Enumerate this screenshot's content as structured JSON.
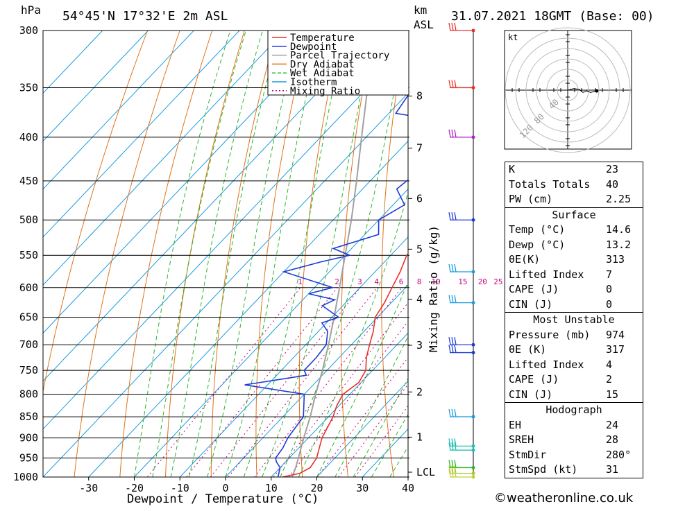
{
  "header": {
    "unit_left": "hPa",
    "location": "54°45'N  17°32'E  2m  ASL",
    "unit_km": "km",
    "unit_asl": "ASL",
    "datetime": "31.07.2021  18GMT  (Base: 00)"
  },
  "chart_data": {
    "type": "skew-t log-p",
    "xlabel": "Dewpoint / Temperature (°C)",
    "ylabel_left": "hPa",
    "ylabel_right": "Mixing Ratio (g/kg)",
    "pressure_levels": [
      300,
      350,
      400,
      450,
      500,
      550,
      600,
      650,
      700,
      750,
      800,
      850,
      900,
      950,
      1000
    ],
    "temperature_ticks": [
      -30,
      -20,
      -10,
      0,
      10,
      20,
      30,
      40
    ],
    "xlim": [
      -40,
      40
    ],
    "ylim_hpa": [
      1000,
      300
    ],
    "altitude_km": [
      {
        "label": "8",
        "p": 358
      },
      {
        "label": "7",
        "p": 412
      },
      {
        "label": "6",
        "p": 472
      },
      {
        "label": "5",
        "p": 541
      },
      {
        "label": "4",
        "p": 619
      },
      {
        "label": "3",
        "p": 701
      },
      {
        "label": "2",
        "p": 795
      },
      {
        "label": "1",
        "p": 898
      },
      {
        "label": "LCL",
        "p": 987
      }
    ],
    "mixing_ratio_labels": [
      "1",
      "2",
      "3",
      "4",
      "6",
      "8",
      "10",
      "15",
      "20",
      "25"
    ],
    "mixing_ratio_values": [
      1,
      2,
      3,
      4,
      6,
      8,
      10,
      15,
      20,
      25
    ],
    "legend": [
      {
        "name": "Temperature",
        "color": "#e8302a",
        "style": "solid"
      },
      {
        "name": "Dewpoint",
        "color": "#1c3bd6",
        "style": "solid"
      },
      {
        "name": "Parcel Trajectory",
        "color": "#a0a0a0",
        "style": "solid"
      },
      {
        "name": "Dry Adiabat",
        "color": "#e0731a",
        "style": "solid"
      },
      {
        "name": "Wet Adiabat",
        "color": "#2bb52b",
        "style": "dashed"
      },
      {
        "name": "Isotherm",
        "color": "#1a9be0",
        "style": "solid"
      },
      {
        "name": "Mixing Ratio",
        "color": "#c8007f",
        "style": "dotted"
      }
    ],
    "series": [
      {
        "name": "Temperature",
        "color": "#e8302a",
        "points": [
          [
            1000,
            12.5
          ],
          [
            990,
            15.5
          ],
          [
            975,
            16.6
          ],
          [
            950,
            16.0
          ],
          [
            925,
            14.5
          ],
          [
            900,
            13.0
          ],
          [
            875,
            12.0
          ],
          [
            850,
            11.0
          ],
          [
            825,
            9.5
          ],
          [
            800,
            8.5
          ],
          [
            775,
            9.5
          ],
          [
            750,
            8.5
          ],
          [
            725,
            6.0
          ],
          [
            700,
            4.0
          ],
          [
            675,
            2.0
          ],
          [
            650,
            -0.5
          ],
          [
            625,
            -1.5
          ],
          [
            600,
            -3.0
          ],
          [
            575,
            -4.5
          ],
          [
            550,
            -6.5
          ],
          [
            525,
            -6.0
          ],
          [
            500,
            -8.5
          ],
          [
            475,
            -11.0
          ],
          [
            450,
            -14.0
          ],
          [
            425,
            -17.0
          ],
          [
            400,
            -21.0
          ],
          [
            375,
            -23.5
          ],
          [
            350,
            -27.5
          ],
          [
            325,
            -32.0
          ],
          [
            300,
            -37.5
          ]
        ]
      },
      {
        "name": "Dewpoint",
        "color": "#1c3bd6",
        "points": [
          [
            1000,
            11.5
          ],
          [
            975,
            10.0
          ],
          [
            960,
            8.0
          ],
          [
            950,
            7.0
          ],
          [
            925,
            6.5
          ],
          [
            900,
            5.5
          ],
          [
            875,
            5.0
          ],
          [
            850,
            4.5
          ],
          [
            800,
            0.0
          ],
          [
            780,
            -15.0
          ],
          [
            760,
            -3.5
          ],
          [
            750,
            -5.0
          ],
          [
            725,
            -5.0
          ],
          [
            700,
            -5.5
          ],
          [
            675,
            -8.0
          ],
          [
            660,
            -11.0
          ],
          [
            650,
            -8.5
          ],
          [
            630,
            -14.5
          ],
          [
            620,
            -13.0
          ],
          [
            610,
            -20.0
          ],
          [
            600,
            -16.0
          ],
          [
            575,
            -30.0
          ],
          [
            560,
            -24.0
          ],
          [
            550,
            -19.0
          ],
          [
            540,
            -24.0
          ],
          [
            520,
            -17.0
          ],
          [
            500,
            -20.0
          ],
          [
            480,
            -17.5
          ],
          [
            460,
            -22.5
          ],
          [
            450,
            -22.0
          ],
          [
            425,
            -19.5
          ],
          [
            420,
            -26.5
          ],
          [
            400,
            -26.0
          ],
          [
            380,
            -31.0
          ],
          [
            375,
            -38.5
          ],
          [
            350,
            -40.0
          ],
          [
            325,
            -40.0
          ],
          [
            300,
            -45.0
          ]
        ]
      },
      {
        "name": "Parcel Trajectory",
        "color": "#a0a0a0",
        "points": [
          [
            1000,
            14.6
          ],
          [
            975,
            13.4
          ],
          [
            950,
            12.0
          ],
          [
            925,
            10.5
          ],
          [
            900,
            9.0
          ],
          [
            850,
            6.0
          ],
          [
            800,
            2.5
          ],
          [
            750,
            -1.0
          ],
          [
            700,
            -5.0
          ],
          [
            650,
            -9.5
          ],
          [
            600,
            -14.5
          ],
          [
            550,
            -20.0
          ],
          [
            500,
            -26.0
          ],
          [
            450,
            -33.0
          ],
          [
            400,
            -41.0
          ],
          [
            350,
            -50.0
          ],
          [
            300,
            -60.0
          ]
        ]
      }
    ],
    "wind_barbs": [
      {
        "p": 300,
        "color": "#e8302a"
      },
      {
        "p": 350,
        "color": "#e8302a"
      },
      {
        "p": 400,
        "color": "#b020c8"
      },
      {
        "p": 500,
        "color": "#1c3bd6"
      },
      {
        "p": 575,
        "color": "#1a9be0"
      },
      {
        "p": 625,
        "color": "#1a9be0"
      },
      {
        "p": 700,
        "color": "#1c3bd6"
      },
      {
        "p": 715,
        "color": "#1c3bd6"
      },
      {
        "p": 850,
        "color": "#1a9be0"
      },
      {
        "p": 920,
        "color": "#20c0b0"
      },
      {
        "p": 930,
        "color": "#20c0b0"
      },
      {
        "p": 975,
        "color": "#2bb52b"
      },
      {
        "p": 990,
        "color": "#b0c820"
      },
      {
        "p": 1000,
        "color": "#c0d040"
      }
    ]
  },
  "hodograph": {
    "unit": "kt",
    "ring_labels": [
      "40",
      "80",
      "120"
    ],
    "track": [
      [
        0,
        0
      ],
      [
        8,
        -2
      ],
      [
        15,
        -1
      ],
      [
        20,
        3
      ],
      [
        25,
        1
      ],
      [
        30,
        3
      ],
      [
        38,
        1
      ]
    ]
  },
  "stats": {
    "basic": [
      {
        "label": "K",
        "value": "23"
      },
      {
        "label": "Totals Totals",
        "value": "40"
      },
      {
        "label": "PW (cm)",
        "value": "2.25"
      }
    ],
    "surface": {
      "title": "Surface",
      "rows": [
        {
          "label": "Temp (°C)",
          "value": "14.6"
        },
        {
          "label": "Dewp (°C)",
          "value": "13.2"
        },
        {
          "label": "θE(K)",
          "value": "313"
        },
        {
          "label": "Lifted Index",
          "value": "7"
        },
        {
          "label": "CAPE (J)",
          "value": "0"
        },
        {
          "label": "CIN (J)",
          "value": "0"
        }
      ]
    },
    "most_unstable": {
      "title": "Most Unstable",
      "rows": [
        {
          "label": "Pressure (mb)",
          "value": "974"
        },
        {
          "label": "θE (K)",
          "value": "317"
        },
        {
          "label": "Lifted Index",
          "value": "4"
        },
        {
          "label": "CAPE (J)",
          "value": "2"
        },
        {
          "label": "CIN (J)",
          "value": "15"
        }
      ]
    },
    "hodograph": {
      "title": "Hodograph",
      "rows": [
        {
          "label": "EH",
          "value": "24"
        },
        {
          "label": "SREH",
          "value": "28"
        },
        {
          "label": "StmDir",
          "value": "280°"
        },
        {
          "label": "StmSpd (kt)",
          "value": "31"
        }
      ]
    }
  },
  "footer": {
    "copyright": "©weatheronline.co.uk"
  }
}
